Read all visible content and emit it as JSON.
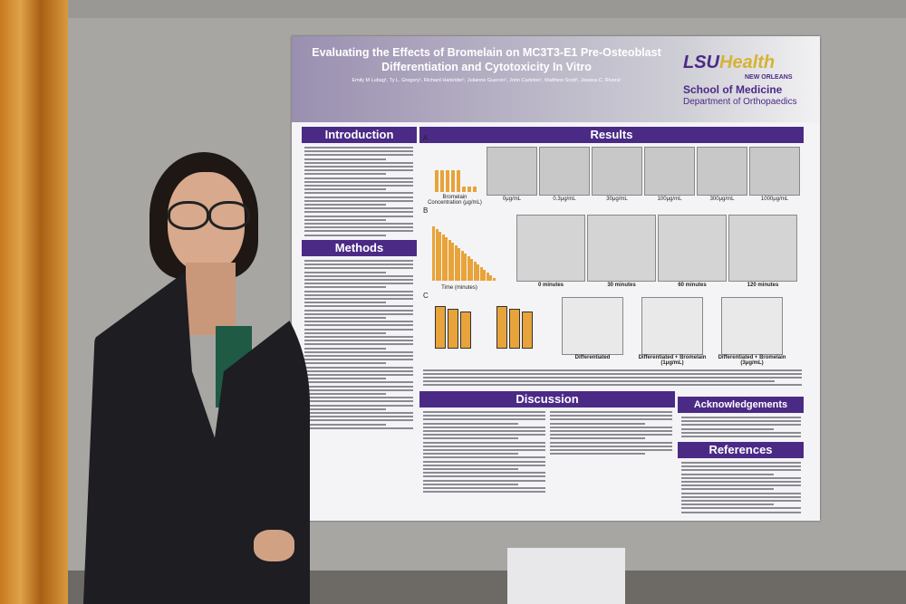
{
  "poster": {
    "title": "Evaluating the Effects of Bromelain on MC3T3-E1 Pre-Osteoblast Differentiation and Cytotoxicity In Vitro",
    "authors": "Emily M Lubag¹, Ty L. Gregory¹, Richard Harkrider¹, Julianne Guercio¹, John Carleton¹, Matthew Scott¹, Jessica C. Rivera¹",
    "logo": {
      "lsu": "LSU",
      "health": "Health",
      "city": "NEW ORLEANS",
      "school": "School of Medicine",
      "department": "Department of Orthopaedics"
    },
    "sections": {
      "introduction": "Introduction",
      "methods": "Methods",
      "results": "Results",
      "discussion": "Discussion",
      "acknowledgements": "Acknowledgements",
      "references": "References"
    },
    "panels": {
      "a": {
        "letter": "A",
        "axis": "Bromelain Concentration (μg/mL)",
        "labels": [
          "0μg/mL",
          "0.3μg/mL",
          "30μg/mL",
          "100μg/mL",
          "300μg/mL",
          "1000μg/mL"
        ]
      },
      "b": {
        "letter": "B",
        "axis": "Time (minutes)",
        "labels": [
          "0 minutes",
          "30 minutes",
          "60 minutes",
          "120 minutes"
        ]
      },
      "c": {
        "letter": "C",
        "labels": [
          "Differentiated",
          "Differentiated + Bromelain (1μg/mL)",
          "Differentiated + Bromelain (3μg/mL)"
        ]
      }
    }
  }
}
